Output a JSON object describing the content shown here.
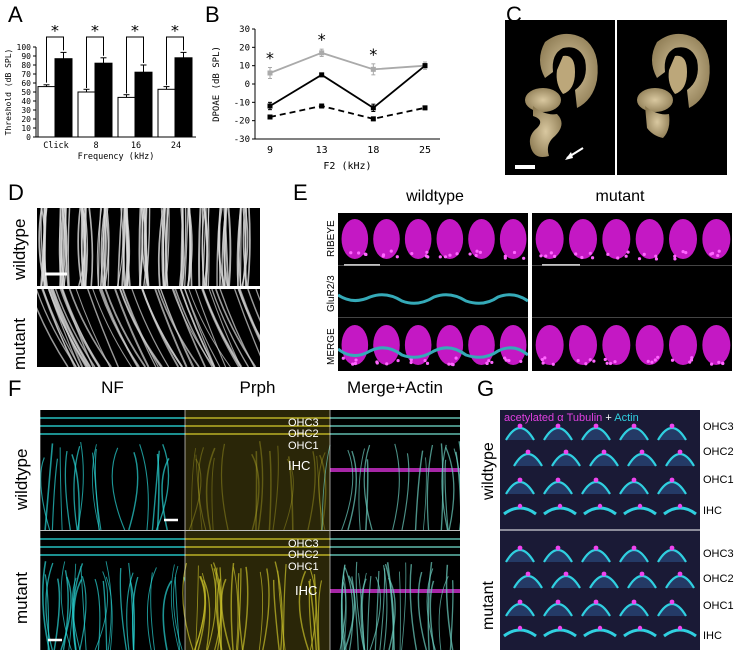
{
  "panels": {
    "A": "A",
    "B": "B",
    "C": "C",
    "D": "D",
    "E": "E",
    "F": "F",
    "G": "G"
  },
  "chart_data": [
    {
      "type": "bar",
      "panel": "A",
      "categories": [
        "Click",
        "8",
        "16",
        "24"
      ],
      "series": [
        {
          "color": "#ffffff",
          "values": [
            56,
            50,
            44,
            53
          ],
          "errors": [
            2,
            3,
            3,
            3
          ]
        },
        {
          "color": "#000000",
          "values": [
            87,
            82,
            72,
            88
          ],
          "errors": [
            7,
            6,
            8,
            6
          ]
        }
      ],
      "significance": [
        "*",
        "*",
        "*",
        "*"
      ],
      "xlabel": "Frequency (kHz)",
      "ylabel": "Threshold (dB SPL)",
      "ylim": [
        0,
        100
      ],
      "yticks": [
        "0",
        "10",
        "20",
        "30",
        "40",
        "50",
        "60",
        "70",
        "80",
        "90",
        "100"
      ]
    },
    {
      "type": "line",
      "panel": "B",
      "x": [
        "9",
        "13",
        "18",
        "25"
      ],
      "series": [
        {
          "color": "#aaaaaa",
          "style": "solid",
          "values": [
            6,
            17,
            8,
            10
          ],
          "errors": [
            3,
            2,
            3,
            2
          ]
        },
        {
          "color": "#000000",
          "style": "solid",
          "values": [
            -12,
            5,
            -13,
            10
          ],
          "errors": [
            2,
            1,
            2,
            1
          ]
        },
        {
          "color": "#000000",
          "style": "dashed",
          "values": [
            -18,
            -12,
            -19,
            -13
          ],
          "errors": [
            1,
            1,
            1,
            1
          ]
        }
      ],
      "significance": [
        "*",
        "*",
        "*",
        ""
      ],
      "xlabel": "F2 (kHz)",
      "ylabel": "DPOAE (dB SPL)",
      "ylim": [
        -30,
        30
      ],
      "yticks": [
        "-30",
        "-20",
        "-10",
        "0",
        "10",
        "20",
        "30"
      ]
    }
  ],
  "labels": {
    "d_wildtype": "wildtype",
    "d_mutant": "mutant",
    "e_wildtype": "wildtype",
    "e_mutant": "mutant",
    "e_ribeye": "RIBEYE",
    "e_glur": "GluR2/3",
    "e_merge": "MERGE",
    "f_nf": "NF",
    "f_prph": "Prph",
    "f_merge": "Merge+Actin",
    "f_wildtype": "wildtype",
    "f_mutant": "mutant",
    "ohc3": "OHC3",
    "ohc2": "OHC2",
    "ohc1": "OHC1",
    "ihc": "IHC",
    "g_title_a": "acetylated α Tubulin",
    "g_title_plus": " + ",
    "g_title_b": "Actin",
    "g_wildtype": "wildtype",
    "g_mutant": "mutant"
  }
}
